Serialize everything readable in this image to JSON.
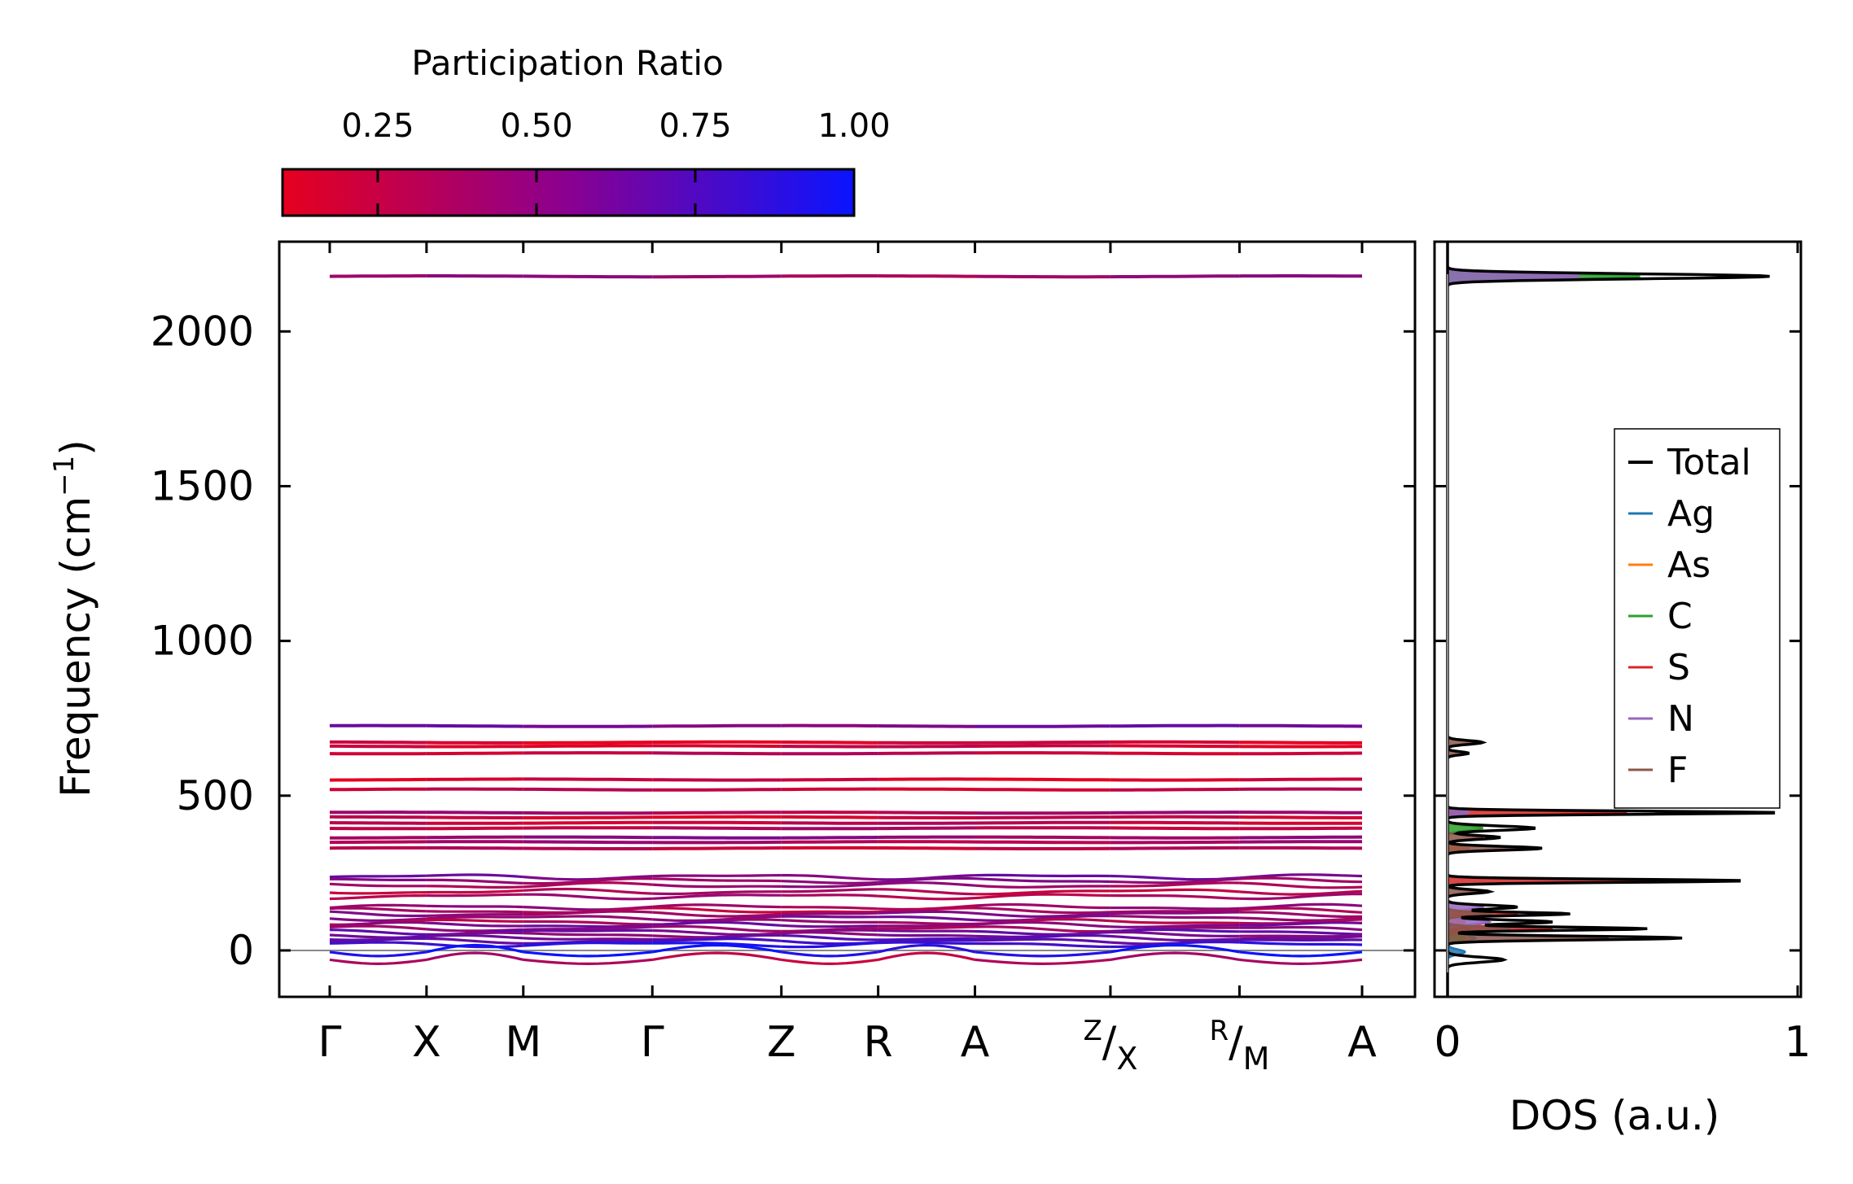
{
  "chart_data": [
    {
      "type": "line",
      "panel": "phonon-band-structure",
      "ylabel": "Frequency (cm",
      "ylabel_sup": "−1",
      "ylabel_end": ")",
      "ylim": [
        -150,
        2290
      ],
      "yticks": [
        0,
        500,
        1000,
        1500,
        2000
      ],
      "path_positions": [
        0,
        0.75,
        1.5,
        2.5,
        3.5,
        4.25,
        5.0,
        6.05,
        7.05,
        8.0
      ],
      "segment_breaks": [
        2.5,
        6.05,
        7.05
      ],
      "x_ticks": [
        {
          "pos": 0.0,
          "label": "Γ"
        },
        {
          "pos": 0.75,
          "label": "X"
        },
        {
          "pos": 1.5,
          "label": "M"
        },
        {
          "pos": 2.5,
          "label": "Γ"
        },
        {
          "pos": 3.5,
          "label": "Z"
        },
        {
          "pos": 4.25,
          "label": "R"
        },
        {
          "pos": 5.0,
          "label": "A"
        },
        {
          "pos": 6.05,
          "label_sup": "Z",
          "label_slash": "/",
          "label_sub": "X"
        },
        {
          "pos": 7.05,
          "label_sup": "R",
          "label_slash": "/",
          "label_sub": "M"
        },
        {
          "pos": 8.0,
          "label": "A"
        }
      ],
      "zero_line": 0,
      "band_count_flat": 33,
      "bands_flat": [
        {
          "freq": 2178,
          "pr": 0.4
        },
        {
          "freq": 725,
          "pr": 0.55
        },
        {
          "freq": 672,
          "pr": 0.15
        },
        {
          "freq": 660,
          "pr": 0.2
        },
        {
          "freq": 637,
          "pr": 0.25
        },
        {
          "freq": 552,
          "pr": 0.18
        },
        {
          "freq": 520,
          "pr": 0.22
        },
        {
          "freq": 445,
          "pr": 0.35
        },
        {
          "freq": 430,
          "pr": 0.2
        },
        {
          "freq": 412,
          "pr": 0.25
        },
        {
          "freq": 395,
          "pr": 0.3
        },
        {
          "freq": 365,
          "pr": 0.45
        },
        {
          "freq": 350,
          "pr": 0.35
        },
        {
          "freq": 330,
          "pr": 0.25
        },
        {
          "freq": 238,
          "pr": 0.55
        },
        {
          "freq": 225,
          "pr": 0.45
        },
        {
          "freq": 210,
          "pr": 0.4
        },
        {
          "freq": 190,
          "pr": 0.3
        },
        {
          "freq": 175,
          "pr": 0.35
        },
        {
          "freq": 140,
          "pr": 0.4
        },
        {
          "freq": 128,
          "pr": 0.3
        },
        {
          "freq": 118,
          "pr": 0.45
        },
        {
          "freq": 105,
          "pr": 0.5
        },
        {
          "freq": 92,
          "pr": 0.35
        },
        {
          "freq": 82,
          "pr": 0.55
        },
        {
          "freq": 70,
          "pr": 0.4
        },
        {
          "freq": 60,
          "pr": 0.6
        },
        {
          "freq": 50,
          "pr": 0.5
        },
        {
          "freq": 40,
          "pr": 0.65
        },
        {
          "freq": 30,
          "pr": 0.7
        },
        {
          "freq": 20,
          "pr": 0.85
        },
        {
          "freq": -5,
          "pr": 0.95
        },
        {
          "freq": -30,
          "pr": 0.3
        }
      ]
    },
    {
      "type": "line",
      "panel": "density-of-states",
      "xlabel": "DOS (a.u.)",
      "xlim": [
        0,
        1
      ],
      "xticks": [
        0,
        1
      ],
      "ylim": [
        -150,
        2290
      ],
      "legend": "right",
      "series": [
        {
          "name": "Total",
          "color": "#000000",
          "peaks": [
            [
              2178,
              0.92,
              8
            ],
            [
              672,
              0.1,
              6
            ],
            [
              637,
              0.06,
              5
            ],
            [
              445,
              0.95,
              5
            ],
            [
              395,
              0.25,
              7
            ],
            [
              365,
              0.15,
              6
            ],
            [
              330,
              0.27,
              6
            ],
            [
              225,
              0.85,
              5
            ],
            [
              190,
              0.12,
              6
            ],
            [
              140,
              0.2,
              6
            ],
            [
              118,
              0.35,
              5
            ],
            [
              92,
              0.3,
              6
            ],
            [
              70,
              0.57,
              5
            ],
            [
              40,
              0.67,
              6
            ],
            [
              -30,
              0.16,
              8
            ]
          ]
        },
        {
          "name": "Ag",
          "color": "#1f77b4",
          "peaks": [
            [
              70,
              0.06,
              8
            ],
            [
              40,
              0.08,
              8
            ],
            [
              -5,
              0.05,
              8
            ]
          ]
        },
        {
          "name": "As",
          "color": "#ff7f0e",
          "peaks": [
            [
              445,
              0.05,
              6
            ],
            [
              330,
              0.06,
              6
            ],
            [
              92,
              0.05,
              8
            ],
            [
              40,
              0.06,
              8
            ]
          ]
        },
        {
          "name": "C",
          "color": "#2ca02c",
          "peaks": [
            [
              2178,
              0.55,
              8
            ],
            [
              395,
              0.1,
              7
            ],
            [
              40,
              0.05,
              8
            ]
          ]
        },
        {
          "name": "S",
          "color": "#d62728",
          "peaks": [
            [
              445,
              0.52,
              5
            ],
            [
              225,
              0.66,
              5
            ],
            [
              118,
              0.2,
              6
            ],
            [
              70,
              0.3,
              6
            ]
          ]
        },
        {
          "name": "N",
          "color": "#9467bd",
          "peaks": [
            [
              2178,
              0.38,
              8
            ],
            [
              445,
              0.06,
              6
            ],
            [
              140,
              0.1,
              8
            ],
            [
              92,
              0.12,
              8
            ]
          ]
        },
        {
          "name": "F",
          "color": "#8c564b",
          "peaks": [
            [
              672,
              0.08,
              6
            ],
            [
              637,
              0.05,
              5
            ],
            [
              365,
              0.1,
              6
            ],
            [
              330,
              0.2,
              6
            ],
            [
              190,
              0.08,
              6
            ],
            [
              118,
              0.12,
              6
            ],
            [
              70,
              0.18,
              6
            ],
            [
              40,
              0.46,
              6
            ]
          ]
        }
      ]
    }
  ],
  "colorbar": {
    "label": "Participation Ratio",
    "range": [
      0.1,
      1.0
    ],
    "ticks": [
      0.25,
      0.5,
      0.75,
      1.0
    ],
    "tick_labels": [
      "0.25",
      "0.50",
      "0.75",
      "1.00"
    ],
    "color_low": "#e6001f",
    "color_high": "#0a14ff"
  }
}
